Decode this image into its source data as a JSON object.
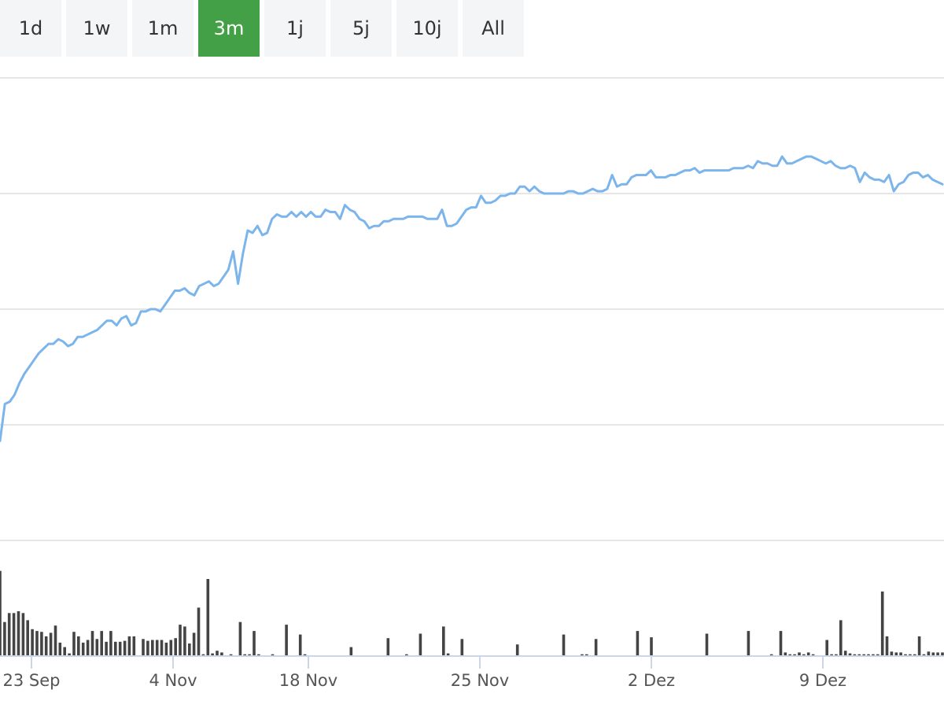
{
  "range_selector": {
    "buttons": [
      {
        "label": "1d"
      },
      {
        "label": "1w"
      },
      {
        "label": "1m"
      },
      {
        "label": "3m",
        "selected": true
      },
      {
        "label": "1j"
      },
      {
        "label": "5j"
      },
      {
        "label": "10j"
      },
      {
        "label": "All"
      }
    ],
    "selected_color": "#43a047"
  },
  "chart_data": {
    "type": "line",
    "title": "",
    "xlabel": "",
    "ylabel": "",
    "x_tick_labels": [
      "23 Sep",
      "4 Nov",
      "18 Nov",
      "25 Nov",
      "2 Dez",
      "9 Dez"
    ],
    "y_gridlines": 5,
    "grid": true,
    "legend": "none",
    "price_series": {
      "color": "#7cb5ec",
      "values": [
        20.3,
        21.9,
        22.0,
        22.3,
        22.8,
        23.2,
        23.5,
        23.8,
        24.1,
        24.3,
        24.5,
        24.5,
        24.7,
        24.6,
        24.4,
        24.5,
        24.8,
        24.8,
        24.9,
        25.0,
        25.1,
        25.3,
        25.5,
        25.5,
        25.3,
        25.6,
        25.7,
        25.3,
        25.4,
        25.9,
        25.9,
        26.0,
        26.0,
        25.9,
        26.2,
        26.5,
        26.8,
        26.8,
        26.9,
        26.7,
        26.6,
        27.0,
        27.1,
        27.2,
        27.0,
        27.1,
        27.4,
        27.7,
        28.5,
        27.1,
        28.4,
        29.4,
        29.3,
        29.6,
        29.2,
        29.3,
        29.9,
        30.1,
        30.0,
        30.0,
        30.2,
        30.0,
        30.2,
        30.0,
        30.2,
        30.0,
        30.0,
        30.3,
        30.2,
        30.2,
        29.9,
        30.5,
        30.3,
        30.2,
        29.9,
        29.8,
        29.5,
        29.6,
        29.6,
        29.8,
        29.8,
        29.9,
        29.9,
        29.9,
        30.0,
        30.0,
        30.0,
        30.0,
        29.9,
        29.9,
        29.9,
        30.3,
        29.6,
        29.6,
        29.7,
        30.0,
        30.3,
        30.4,
        30.4,
        30.9,
        30.6,
        30.6,
        30.7,
        30.9,
        30.9,
        31.0,
        31.0,
        31.3,
        31.3,
        31.1,
        31.3,
        31.1,
        31.0,
        31.0,
        31.0,
        31.0,
        31.0,
        31.1,
        31.1,
        31.0,
        31.0,
        31.1,
        31.2,
        31.1,
        31.1,
        31.2,
        31.8,
        31.3,
        31.4,
        31.4,
        31.7,
        31.8,
        31.8,
        31.8,
        32.0,
        31.7,
        31.7,
        31.7,
        31.8,
        31.8,
        31.9,
        32.0,
        32.0,
        32.1,
        31.9,
        32.0,
        32.0,
        32.0,
        32.0,
        32.0,
        32.0,
        32.1,
        32.1,
        32.1,
        32.2,
        32.1,
        32.4,
        32.3,
        32.3,
        32.2,
        32.2,
        32.6,
        32.3,
        32.3,
        32.4,
        32.5,
        32.6,
        32.6,
        32.5,
        32.4,
        32.3,
        32.4,
        32.2,
        32.1,
        32.1,
        32.2,
        32.1,
        31.5,
        31.9,
        31.7,
        31.6,
        31.6,
        31.5,
        31.8,
        31.1,
        31.4,
        31.5,
        31.8,
        31.9,
        31.9,
        31.7,
        31.8,
        31.6,
        31.5,
        31.4
      ]
    },
    "volume_series": {
      "color": "#444444",
      "values": [
        95,
        38,
        48,
        48,
        50,
        48,
        40,
        30,
        28,
        27,
        22,
        26,
        34,
        15,
        10,
        3,
        27,
        22,
        15,
        18,
        28,
        19,
        28,
        16,
        28,
        16,
        16,
        17,
        22,
        22,
        0,
        19,
        17,
        18,
        18,
        18,
        15,
        18,
        20,
        35,
        33,
        14,
        26,
        54,
        2,
        86,
        3,
        6,
        4,
        0,
        2,
        0,
        38,
        2,
        2,
        28,
        2,
        0,
        0,
        2,
        0,
        0,
        35,
        0,
        0,
        24,
        2,
        0,
        0,
        0,
        0,
        0,
        0,
        0,
        0,
        0,
        10,
        0,
        0,
        0,
        0,
        0,
        0,
        0,
        20,
        0,
        0,
        0,
        2,
        0,
        0,
        25,
        0,
        0,
        0,
        0,
        33,
        3,
        0,
        0,
        19,
        0,
        0,
        0,
        0,
        0,
        0,
        0,
        0,
        0,
        0,
        0,
        13,
        0,
        0,
        0,
        0,
        0,
        0,
        0,
        0,
        0,
        24,
        0,
        0,
        0,
        2,
        2,
        0,
        19,
        0,
        0,
        0,
        0,
        0,
        0,
        0,
        0,
        28,
        0,
        0,
        21,
        0,
        0,
        0,
        0,
        0,
        0,
        0,
        0,
        0,
        0,
        0,
        25,
        0,
        0,
        0,
        0,
        0,
        0,
        0,
        0,
        28,
        0,
        0,
        0,
        0,
        2,
        0,
        28,
        4,
        2,
        2,
        4,
        2,
        4,
        2,
        0,
        0,
        18,
        2,
        2,
        40,
        6,
        3,
        2,
        2,
        2,
        2,
        2,
        2,
        72,
        22,
        5,
        4,
        4,
        2,
        2,
        2,
        22,
        2,
        5,
        4,
        4,
        4
      ]
    }
  }
}
